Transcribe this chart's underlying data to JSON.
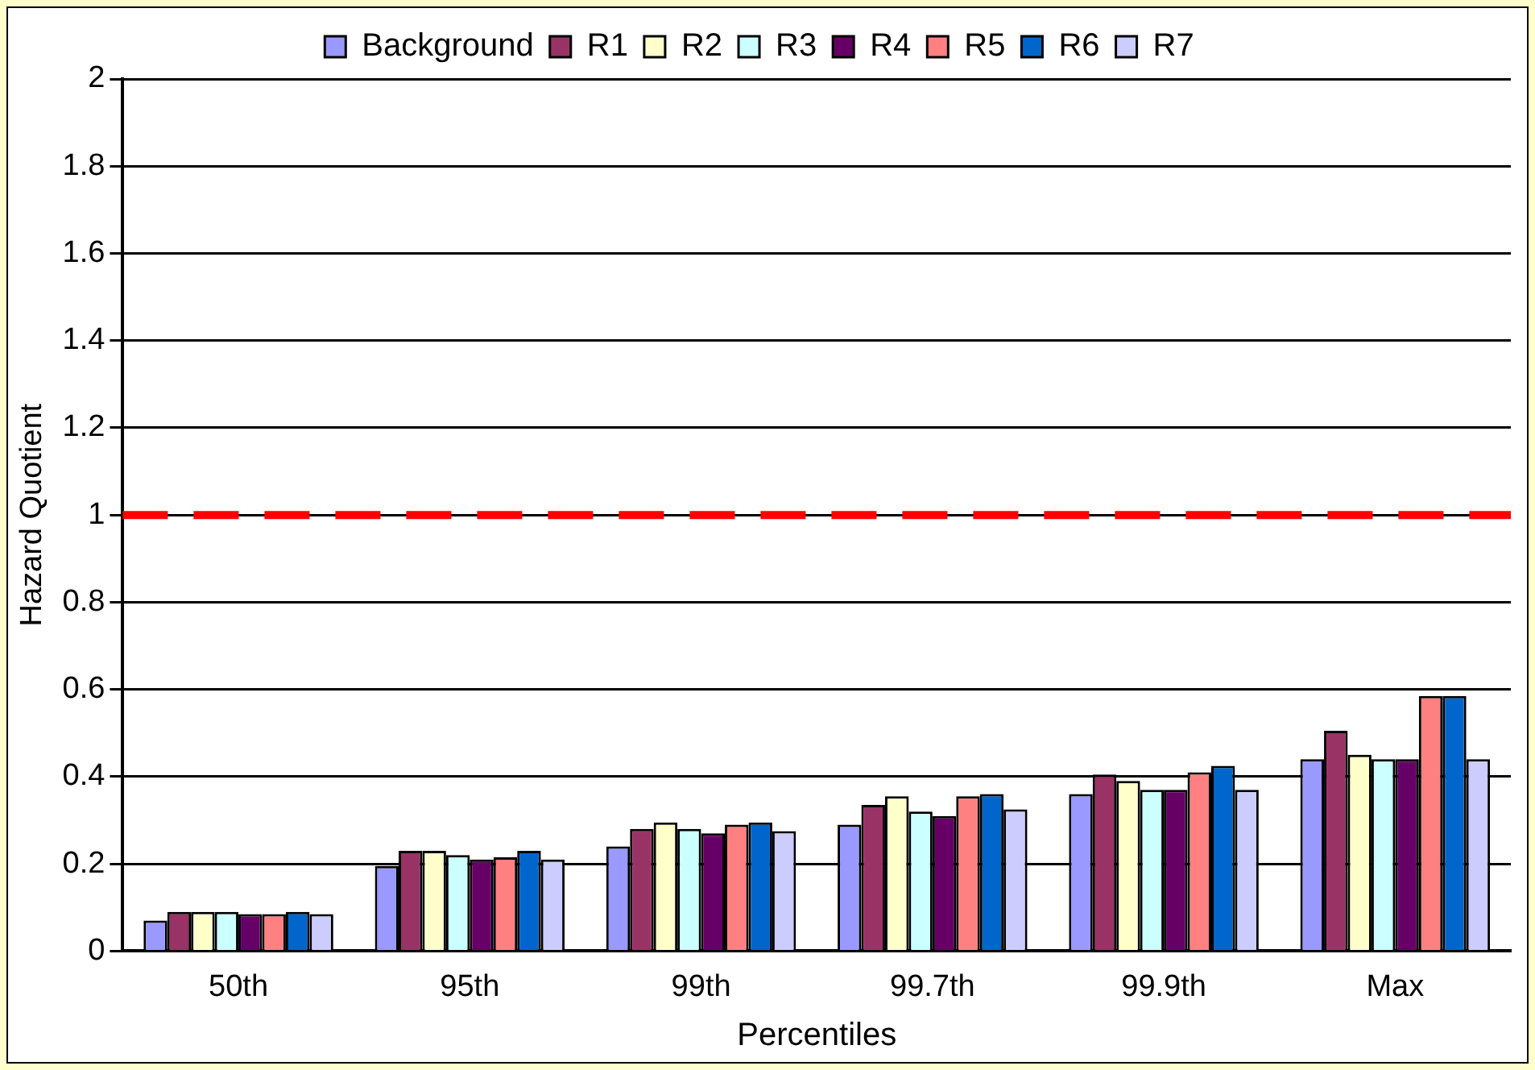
{
  "chart_data": {
    "type": "bar",
    "xlabel": "Percentiles",
    "ylabel": "Hazard Quotient",
    "categories": [
      "50th",
      "95th",
      "99th",
      "99.7th",
      "99.9th",
      "Max"
    ],
    "series": [
      {
        "name": "Background",
        "color": "#9999ff",
        "values": [
          0.07,
          0.195,
          0.24,
          0.29,
          0.36,
          0.44
        ]
      },
      {
        "name": "R1",
        "color": "#993366",
        "values": [
          0.09,
          0.23,
          0.28,
          0.335,
          0.405,
          0.505
        ]
      },
      {
        "name": "R2",
        "color": "#ffffcc",
        "values": [
          0.09,
          0.23,
          0.295,
          0.355,
          0.39,
          0.45
        ]
      },
      {
        "name": "R3",
        "color": "#ccffff",
        "values": [
          0.09,
          0.22,
          0.28,
          0.32,
          0.37,
          0.44
        ]
      },
      {
        "name": "R4",
        "color": "#660066",
        "values": [
          0.085,
          0.21,
          0.27,
          0.31,
          0.37,
          0.44
        ]
      },
      {
        "name": "R5",
        "color": "#ff8080",
        "values": [
          0.085,
          0.215,
          0.29,
          0.355,
          0.41,
          0.585
        ]
      },
      {
        "name": "R6",
        "color": "#0066cc",
        "values": [
          0.09,
          0.23,
          0.295,
          0.36,
          0.425,
          0.585
        ]
      },
      {
        "name": "R7",
        "color": "#ccccff",
        "values": [
          0.085,
          0.21,
          0.275,
          0.325,
          0.37,
          0.44
        ]
      }
    ],
    "ylim": [
      0,
      2
    ],
    "yticks": [
      0,
      0.2,
      0.4,
      0.6,
      0.8,
      1,
      1.2,
      1.4,
      1.6,
      1.8,
      2
    ],
    "grid": "y",
    "legend": "top",
    "ref_lines": [
      {
        "axis": "y",
        "value": 1,
        "color": "#ff0000",
        "line_style": "dashed"
      }
    ]
  }
}
